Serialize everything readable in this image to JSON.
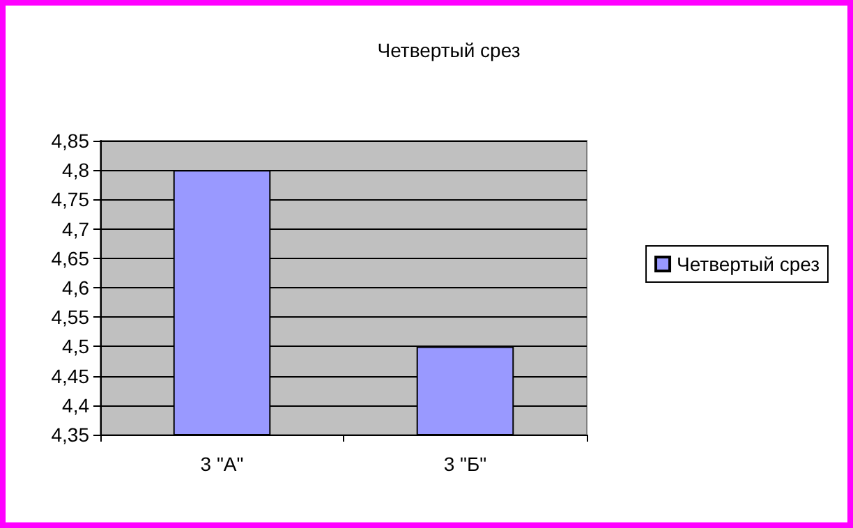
{
  "chart_data": {
    "type": "bar",
    "title": "Четвертый срез",
    "categories": [
      "3 \"А\"",
      "3 \"Б\""
    ],
    "series": [
      {
        "name": "Четвертый срез",
        "color": "#9999ff",
        "values": [
          4.8,
          4.5
        ]
      }
    ],
    "ylim": [
      4.35,
      4.85
    ],
    "yticks": [
      {
        "value": 4.35,
        "label": "4,35"
      },
      {
        "value": 4.4,
        "label": "4,4"
      },
      {
        "value": 4.45,
        "label": "4,45"
      },
      {
        "value": 4.5,
        "label": "4,5"
      },
      {
        "value": 4.55,
        "label": "4,55"
      },
      {
        "value": 4.6,
        "label": "4,6"
      },
      {
        "value": 4.65,
        "label": "4,65"
      },
      {
        "value": 4.7,
        "label": "4,7"
      },
      {
        "value": 4.75,
        "label": "4,75"
      },
      {
        "value": 4.8,
        "label": "4,8"
      },
      {
        "value": 4.85,
        "label": "4,85"
      }
    ],
    "grid": "y",
    "legend": "right"
  }
}
